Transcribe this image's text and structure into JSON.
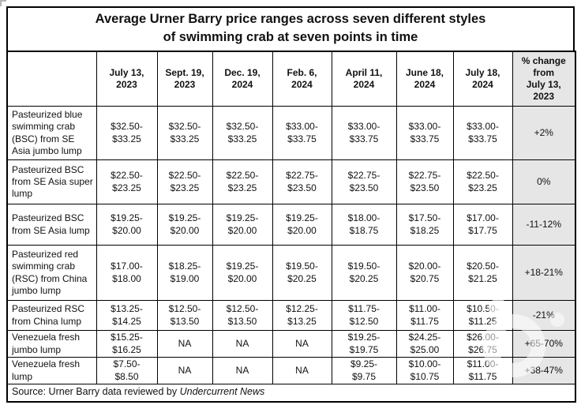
{
  "colors": {
    "border": "#000000",
    "shaded_column_bg": "#e7e6e6",
    "text": "#111111",
    "page_bg": "#ffffff",
    "watermark": "#ffffff"
  },
  "chart_data": {
    "type": "table",
    "title": "Average Urner Barry price ranges across seven different styles of swimming crab at seven points in time",
    "title_lines": [
      "Average Urner Barry price ranges across seven different styles",
      "of swimming crab at seven points in time"
    ],
    "columns": [
      "",
      "July 13,\n2023",
      "Sept. 19,\n2023",
      "Dec. 19,\n2024",
      "Feb. 6,\n2024",
      "April 11,\n2024",
      "June 18,\n2024",
      "July 18,\n2024",
      "% change\nfrom\nJuly 13,\n2023"
    ],
    "rows": [
      {
        "label": "Pasteurized blue swimming crab (BSC) from SE Asia jumbo lump",
        "values": [
          "$32.50-\n$33.25",
          "$32.50-\n$33.25",
          "$32.50-\n$33.25",
          "$33.00-\n$33.75",
          "$33.00-\n$33.75",
          "$33.00-\n$33.75",
          "$33.00-\n$33.75",
          "+2%"
        ]
      },
      {
        "label": "Pasteurized BSC from SE Asia super lump",
        "values": [
          "$22.50-\n$23.25",
          "$22.50-\n$23.25",
          "$22.50-\n$23.25",
          "$22.75-\n$23.50",
          "$22.75-\n$23.50",
          "$22.75-\n$23.50",
          "$22.50-\n$23.25",
          "0%"
        ]
      },
      {
        "label": "Pasteurized BSC from SE Asia lump",
        "values": [
          "$19.25-\n$20.00",
          "$19.25-\n$20.00",
          "$19.25-\n$20.00",
          "$19.25-\n$20.00",
          "$18.00-\n$18.75",
          "$17.50-\n$18.25",
          "$17.00-\n$17.75",
          "-11-12%"
        ]
      },
      {
        "label": "Pasteurized red swimming crab (RSC) from China jumbo lump",
        "values": [
          "$17.00-\n$18.00",
          "$18.25-\n$19.00",
          "$19.25-\n$20.00",
          "$19.50-\n$20.25",
          "$19.50-\n$20.25",
          "$20.00-\n$20.75",
          "$20.50-\n$21.25",
          "+18-21%"
        ]
      },
      {
        "label": "Pasteurized RSC from China lump",
        "values": [
          "$13.25-\n$14.25",
          "$12.50-\n$13.50",
          "$12.50-\n$13.50",
          "$12.25-\n$13.25",
          "$11.75-\n$12.50",
          "$11.00-\n$11.75",
          "$10.50-\n$11.25",
          "-21%"
        ]
      },
      {
        "label": "Venezuela fresh jumbo lump",
        "values": [
          "$15.25-\n$16.25",
          "NA",
          "NA",
          "NA",
          "$19.25-\n$19.75",
          "$24.25-\n$25.00",
          "$26.00-\n$26.75",
          "+65-70%"
        ]
      },
      {
        "label": "Venezuela fresh lump",
        "values": [
          "$7.50-\n$8.50",
          "NA",
          "NA",
          "NA",
          "$9.25-\n$9.75",
          "$10.00-\n$10.75",
          "$11.00-\n$11.75",
          "+38-47%"
        ]
      }
    ],
    "source": {
      "prefix": "Source: Urner Barry data reviewed by ",
      "publication": "Undercurrent News"
    },
    "layout": {
      "shaded_last_column": true,
      "grid": true,
      "legend_position": "none"
    }
  }
}
